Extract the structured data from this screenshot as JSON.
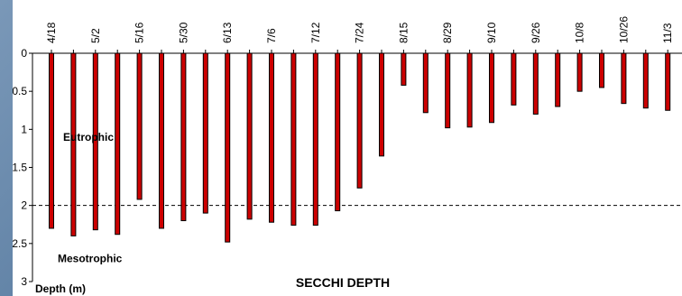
{
  "chart_data": {
    "type": "bar",
    "title": "SECCHI DEPTH",
    "ylabel": "Depth (m)",
    "ylim": [
      0,
      3
    ],
    "y_inverted": true,
    "yticks": [
      "0",
      "0.5",
      "1",
      "1.5",
      "2",
      "2.5",
      "3"
    ],
    "bar_color": "#cc0000",
    "grid": false,
    "categories": [
      "4/18",
      "",
      "5/2",
      "",
      "5/16",
      "",
      "5/30",
      "",
      "6/13",
      "",
      "7/6",
      "",
      "7/12",
      "",
      "7/24",
      "",
      "8/15",
      "",
      "8/29",
      "",
      "9/10",
      "",
      "9/26",
      "",
      "10/8",
      "",
      "10/26",
      "",
      "11/3"
    ],
    "values": [
      2.3,
      2.4,
      2.32,
      2.38,
      1.92,
      2.3,
      2.2,
      2.1,
      2.48,
      2.18,
      2.22,
      2.26,
      2.26,
      2.07,
      1.77,
      1.35,
      0.42,
      0.78,
      0.98,
      0.97,
      0.91,
      0.68,
      0.8,
      0.7,
      0.5,
      0.45,
      0.66,
      0.72,
      0.75
    ],
    "reference_line": {
      "value": 2,
      "style": "dashed"
    },
    "annotations": [
      {
        "text": "Eutrophic",
        "y": 1.1
      },
      {
        "text": "Mesotrophic",
        "y": 2.7
      }
    ]
  }
}
